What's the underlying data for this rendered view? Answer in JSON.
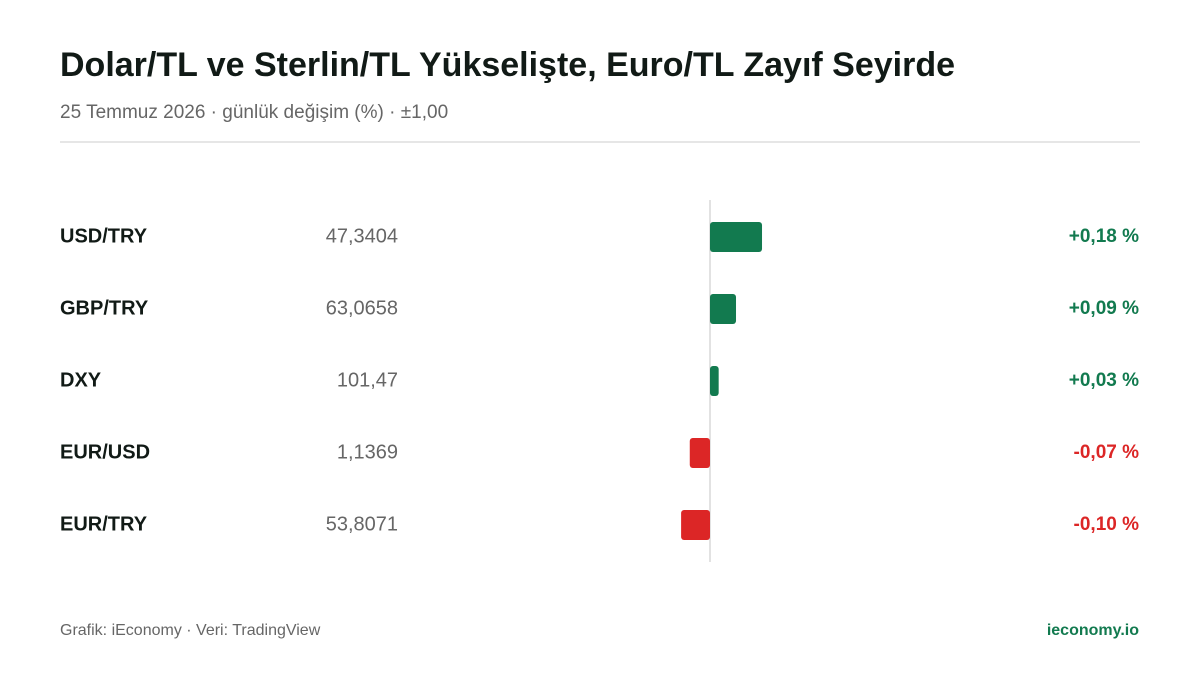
{
  "chart_data": {
    "type": "bar",
    "orientation": "horizontal",
    "title": "Dolar/TL ve Sterlin/TL Yükselişte, Euro/TL Zayıf Seyirde",
    "subtitle": "25 Temmuz 2026 · günlük değişim (%) · ±1,00",
    "categories": [
      "USD/TRY",
      "GBP/TRY",
      "DXY",
      "EUR/USD",
      "EUR/TRY"
    ],
    "prices": [
      "47,3404",
      "63,0658",
      "101,47",
      "1,1369",
      "53,8071"
    ],
    "values": [
      0.18,
      0.09,
      0.03,
      -0.07,
      -0.1
    ],
    "value_labels": [
      "+0,18 %",
      "+0,09 %",
      "+0,03 %",
      "-0,07 %",
      "-0,10 %"
    ],
    "xlim": [
      -1,
      1
    ],
    "positive_color": "#127a4f",
    "negative_color": "#dc2626",
    "footer": "Grafik: iEconomy · Veri: TradingView",
    "source": "ieconomy.io"
  }
}
